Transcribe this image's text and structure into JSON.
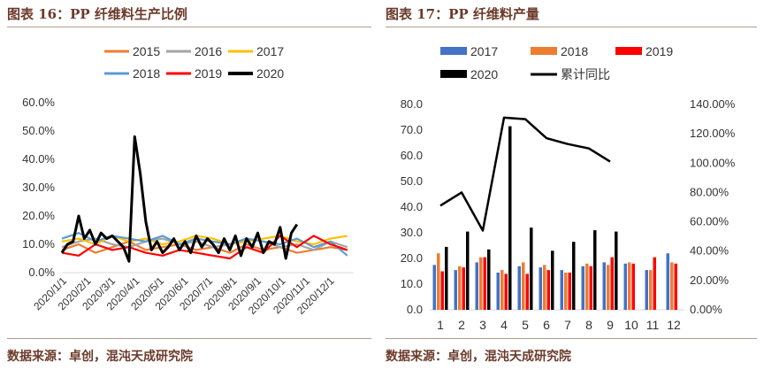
{
  "left": {
    "title": "图表 16：PP 纤维料生产比例",
    "source": "数据来源：卓创，混沌天成研究院"
  },
  "right": {
    "title": "图表 17：PP 纤维料产量",
    "source": "数据来源：卓创，混沌天成研究院"
  },
  "colors": {
    "s2015": "#ED7D31",
    "s2016": "#A5A5A5",
    "s2017": "#FFC000",
    "s2018": "#5B9BD5",
    "s2019": "#FF0000",
    "s2020": "#000000",
    "bar2017": "#4472C4",
    "bar2018": "#ED7D31",
    "bar2019": "#FF0000",
    "bar2020": "#000000",
    "cumulative": "#000000",
    "title": "#6b3a2a"
  },
  "chart_data": [
    {
      "type": "line",
      "yticks": [
        "0.0%",
        "10.0%",
        "20.0%",
        "30.0%",
        "40.0%",
        "50.0%",
        "60.0%"
      ],
      "ylim": [
        0,
        0.6
      ],
      "xticks": [
        "2020/1/1",
        "2020/2/1",
        "2020/3/1",
        "2020/4/1",
        "2020/5/1",
        "2020/6/1",
        "2020/7/1",
        "2020/8/1",
        "2020/9/1",
        "2020/10/1",
        "2020/11/1",
        "2020/12/1"
      ],
      "xlim_days": [
        0,
        365
      ],
      "legend_position": "top",
      "series": [
        {
          "name": "2015",
          "color_key": "s2015",
          "x": [
            0,
            21,
            42,
            63,
            84,
            105,
            126,
            147,
            168,
            189,
            210,
            231,
            252,
            273,
            294,
            315,
            336,
            357
          ],
          "values": [
            0.08,
            0.1,
            0.07,
            0.09,
            0.11,
            0.08,
            0.09,
            0.1,
            0.08,
            0.09,
            0.07,
            0.1,
            0.08,
            0.09,
            0.07,
            0.08,
            0.09,
            0.08
          ]
        },
        {
          "name": "2016",
          "color_key": "s2016",
          "x": [
            0,
            21,
            42,
            63,
            84,
            105,
            126,
            147,
            168,
            189,
            210,
            231,
            252,
            273,
            294,
            315,
            336,
            357
          ],
          "values": [
            0.09,
            0.11,
            0.12,
            0.1,
            0.09,
            0.11,
            0.12,
            0.1,
            0.11,
            0.09,
            0.1,
            0.12,
            0.11,
            0.09,
            0.1,
            0.08,
            0.11,
            0.09
          ]
        },
        {
          "name": "2017",
          "color_key": "s2017",
          "x": [
            0,
            21,
            42,
            63,
            84,
            105,
            126,
            147,
            168,
            189,
            210,
            231,
            252,
            273,
            294,
            315,
            336,
            357
          ],
          "values": [
            0.11,
            0.12,
            0.1,
            0.13,
            0.11,
            0.12,
            0.1,
            0.11,
            0.13,
            0.12,
            0.1,
            0.11,
            0.12,
            0.13,
            0.11,
            0.1,
            0.12,
            0.13
          ]
        },
        {
          "name": "2018",
          "color_key": "s2018",
          "x": [
            0,
            21,
            42,
            63,
            84,
            105,
            126,
            147,
            168,
            189,
            210,
            231,
            252,
            273,
            294,
            315,
            336,
            357
          ],
          "values": [
            0.12,
            0.14,
            0.11,
            0.13,
            0.12,
            0.11,
            0.13,
            0.1,
            0.12,
            0.11,
            0.1,
            0.12,
            0.11,
            0.1,
            0.12,
            0.09,
            0.11,
            0.06
          ]
        },
        {
          "name": "2019",
          "color_key": "s2019",
          "x": [
            0,
            21,
            42,
            63,
            84,
            105,
            126,
            147,
            168,
            189,
            210,
            231,
            252,
            273,
            294,
            315,
            336,
            357
          ],
          "values": [
            0.07,
            0.06,
            0.1,
            0.08,
            0.09,
            0.07,
            0.06,
            0.08,
            0.07,
            0.06,
            0.05,
            0.09,
            0.07,
            0.13,
            0.09,
            0.13,
            0.1,
            0.08
          ]
        },
        {
          "name": "2020",
          "color_key": "s2020",
          "x": [
            0,
            7,
            14,
            21,
            28,
            35,
            42,
            49,
            56,
            63,
            70,
            77,
            84,
            91,
            98,
            105,
            112,
            119,
            126,
            133,
            140,
            147,
            154,
            161,
            168,
            175,
            182,
            189,
            196,
            203,
            210,
            217,
            224,
            231,
            238,
            245,
            252,
            259,
            266,
            273,
            280,
            287,
            294
          ],
          "values": [
            0.07,
            0.1,
            0.11,
            0.2,
            0.12,
            0.15,
            0.1,
            0.14,
            0.12,
            0.13,
            0.11,
            0.09,
            0.04,
            0.48,
            0.35,
            0.18,
            0.08,
            0.11,
            0.07,
            0.09,
            0.12,
            0.08,
            0.11,
            0.07,
            0.13,
            0.09,
            0.12,
            0.1,
            0.07,
            0.12,
            0.08,
            0.13,
            0.06,
            0.12,
            0.09,
            0.14,
            0.07,
            0.11,
            0.1,
            0.16,
            0.05,
            0.14,
            0.17
          ]
        }
      ]
    },
    {
      "type": "bar",
      "categories": [
        "1",
        "2",
        "3",
        "4",
        "5",
        "6",
        "7",
        "8",
        "9",
        "10",
        "11",
        "12"
      ],
      "ylim": [
        0,
        80
      ],
      "yticks": [
        "0.0",
        "10.0",
        "20.0",
        "30.0",
        "40.0",
        "50.0",
        "60.0",
        "70.0",
        "80.0"
      ],
      "y2lim": [
        0,
        1.4
      ],
      "y2ticks": [
        "0.00%",
        "20.00%",
        "40.00%",
        "60.00%",
        "80.00%",
        "100.00%",
        "120.00%",
        "140.00%"
      ],
      "legend_position": "top",
      "series": [
        {
          "name": "2017",
          "color_key": "bar2017",
          "values": [
            17.5,
            15.5,
            18.5,
            14.5,
            17,
            16.5,
            15.5,
            17,
            18.5,
            18,
            15.5,
            22
          ]
        },
        {
          "name": "2018",
          "color_key": "bar2018",
          "values": [
            22,
            17,
            20.5,
            15.5,
            18.5,
            17.5,
            14.5,
            18,
            17.5,
            18.5,
            15.5,
            18.5
          ]
        },
        {
          "name": "2019",
          "color_key": "bar2019",
          "values": [
            15,
            16.5,
            20.5,
            14,
            14,
            15.5,
            14.5,
            17,
            20.5,
            18,
            20.5,
            18
          ]
        },
        {
          "name": "2020",
          "color_key": "bar2020",
          "values": [
            24.5,
            30.5,
            23.5,
            71.5,
            32,
            23,
            26.5,
            31,
            30.5,
            null,
            null,
            null
          ]
        },
        {
          "name": "累计同比",
          "type": "line",
          "axis": "right",
          "color_key": "cumulative",
          "values": [
            0.71,
            0.8,
            0.54,
            1.31,
            1.3,
            1.17,
            1.13,
            1.1,
            1.01,
            null,
            null,
            null
          ]
        }
      ]
    }
  ]
}
